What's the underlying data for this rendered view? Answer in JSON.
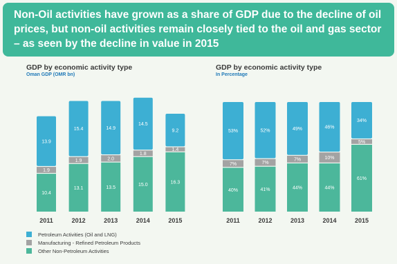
{
  "header": {
    "title": "Non-Oil activities have grown as a share of GDP due to the decline of oil prices, but non-oil activities remain closely tied to the oil and gas sector – as seen by the decline in value in 2015"
  },
  "colors": {
    "header_bg": "#3fb89a",
    "petroleum": "#3dafd3",
    "manufacturing": "#a3a3a3",
    "non_petroleum": "#4cb79b"
  },
  "legend": [
    {
      "label": "Petroleum Activities (Oil and LNG)",
      "color": "#3dafd3"
    },
    {
      "label": "Manufacturing - Refined Petroleum Products",
      "color": "#a3a3a3"
    },
    {
      "label": "Other Non-Petroleum Activities",
      "color": "#4cb79b"
    }
  ],
  "chart_data": [
    {
      "type": "bar",
      "stacked": true,
      "title": "GDP by economic activity type",
      "subtitle": "Oman GDP (OMR bn)",
      "categories": [
        "2011",
        "2012",
        "2013",
        "2014",
        "2015"
      ],
      "series": [
        {
          "name": "Other Non-Petroleum Activities",
          "values": [
            10.4,
            13.1,
            13.5,
            15.0,
            16.3
          ],
          "labels": [
            "10.4",
            "13.1",
            "13.5",
            "15.0",
            "16.3"
          ]
        },
        {
          "name": "Manufacturing - Refined Petroleum Products",
          "values": [
            1.9,
            1.9,
            2.0,
            1.8,
            1.4
          ],
          "labels": [
            "1.9",
            "1.9",
            "2.0",
            "1.8",
            "1.4"
          ]
        },
        {
          "name": "Petroleum Activities (Oil and LNG)",
          "values": [
            13.9,
            15.4,
            14.9,
            14.5,
            9.2
          ],
          "labels": [
            "13.9",
            "15.4",
            "14.9",
            "14.5",
            "9.2"
          ]
        }
      ],
      "ylim": [
        0,
        32.2
      ],
      "grid": false,
      "legend": "bottom-left"
    },
    {
      "type": "bar",
      "stacked": true,
      "title": "GDP by economic activity type",
      "subtitle": "In Percentage",
      "categories": [
        "2011",
        "2012",
        "2013",
        "2014",
        "2015"
      ],
      "series": [
        {
          "name": "Other Non-Petroleum Activities",
          "values": [
            40,
            41,
            44,
            44,
            61
          ],
          "labels": [
            "40%",
            "41%",
            "44%",
            "44%",
            "61%"
          ]
        },
        {
          "name": "Manufacturing - Refined Petroleum Products",
          "values": [
            7,
            7,
            7,
            10,
            5
          ],
          "labels": [
            "7%",
            "7%",
            "7%",
            "10%",
            "5%"
          ]
        },
        {
          "name": "Petroleum Activities (Oil and LNG)",
          "values": [
            53,
            52,
            49,
            46,
            34
          ],
          "labels": [
            "53%",
            "52%",
            "49%",
            "46%",
            "34%"
          ]
        }
      ],
      "ylim": [
        0,
        100
      ],
      "grid": false,
      "legend": "bottom-left"
    }
  ]
}
